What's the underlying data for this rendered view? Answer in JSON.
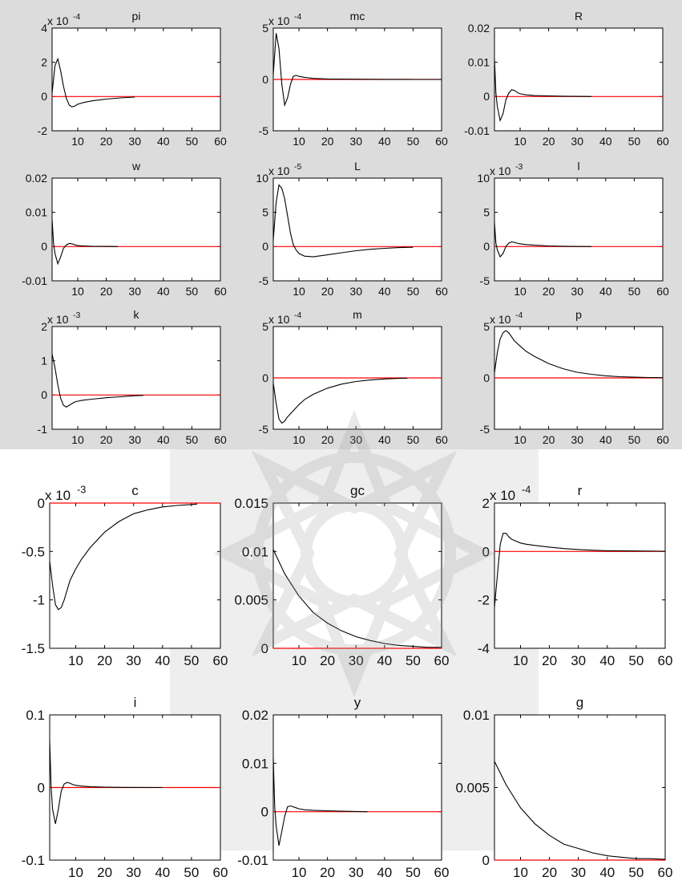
{
  "colors": {
    "response": "#000000",
    "zero_line": "#ff0000",
    "axes": "#000000",
    "panel_bg": "#ffffff",
    "page_bg": "#dcdcdc"
  },
  "chart_data": [
    {
      "type": "line",
      "title": "pi",
      "multiplier": "x 10",
      "exponent": "-4",
      "ylim": [
        -2,
        4
      ],
      "yticks": [
        -2,
        0,
        2,
        4
      ],
      "ytick_labels": [
        "-2",
        "0",
        "2",
        "4"
      ],
      "xlim": [
        1,
        60
      ],
      "xticks": [
        10,
        20,
        30,
        40,
        50,
        60
      ],
      "x": [
        1,
        2,
        3,
        4,
        5,
        6,
        7,
        8,
        9,
        10,
        12,
        15,
        20,
        25,
        30
      ],
      "y": [
        0.2,
        1.8,
        2.2,
        1.5,
        0.6,
        -0.1,
        -0.5,
        -0.6,
        -0.55,
        -0.45,
        -0.35,
        -0.25,
        -0.15,
        -0.08,
        -0.03
      ]
    },
    {
      "type": "line",
      "title": "mc",
      "multiplier": "x 10",
      "exponent": "-4",
      "ylim": [
        -5,
        5
      ],
      "yticks": [
        -5,
        0,
        5
      ],
      "ytick_labels": [
        "-5",
        "0",
        "5"
      ],
      "xlim": [
        1,
        60
      ],
      "xticks": [
        10,
        20,
        30,
        40,
        50,
        60
      ],
      "x": [
        1,
        2,
        3,
        4,
        5,
        6,
        7,
        8,
        9,
        10,
        12,
        15,
        20,
        30,
        40,
        50,
        60
      ],
      "y": [
        0.5,
        4.5,
        3.0,
        -0.5,
        -2.5,
        -1.8,
        -0.5,
        0.3,
        0.4,
        0.3,
        0.2,
        0.1,
        0.05,
        0.02,
        0.01,
        0.0,
        0.0
      ]
    },
    {
      "type": "line",
      "title": "R",
      "multiplier": "",
      "exponent": "",
      "ylim": [
        -0.01,
        0.02
      ],
      "yticks": [
        -0.01,
        0,
        0.01,
        0.02
      ],
      "ytick_labels": [
        "-0.01",
        "0",
        "0.01",
        "0.02"
      ],
      "xlim": [
        1,
        60
      ],
      "xticks": [
        10,
        20,
        30,
        40,
        50,
        60
      ],
      "x": [
        1,
        1.5,
        2,
        3,
        4,
        5,
        6,
        7,
        8,
        9,
        10,
        12,
        15,
        20,
        25,
        30,
        35
      ],
      "y": [
        0.011,
        0.001,
        -0.003,
        -0.007,
        -0.005,
        -0.001,
        0.001,
        0.002,
        0.0018,
        0.0012,
        0.0008,
        0.0005,
        0.0003,
        0.0002,
        0.0001,
        5e-05,
        0.0
      ]
    },
    {
      "type": "line",
      "title": "w",
      "multiplier": "",
      "exponent": "",
      "ylim": [
        -0.01,
        0.02
      ],
      "yticks": [
        -0.01,
        0,
        0.01,
        0.02
      ],
      "ytick_labels": [
        "-0.01",
        "0",
        "0.01",
        "0.02"
      ],
      "xlim": [
        1,
        60
      ],
      "xticks": [
        10,
        20,
        30,
        40,
        50,
        60
      ],
      "x": [
        1,
        1.5,
        2,
        3,
        4,
        5,
        6,
        7,
        8,
        9,
        10,
        12,
        15,
        20,
        24
      ],
      "y": [
        0.008,
        0.001,
        -0.002,
        -0.005,
        -0.003,
        -0.0005,
        0.0005,
        0.0009,
        0.0008,
        0.0005,
        0.0003,
        0.0002,
        0.0001,
        5e-05,
        0.0
      ]
    },
    {
      "type": "line",
      "title": "L",
      "multiplier": "x 10",
      "exponent": "-5",
      "ylim": [
        -5,
        10
      ],
      "yticks": [
        -5,
        0,
        5,
        10
      ],
      "ytick_labels": [
        "-5",
        "0",
        "5",
        "10"
      ],
      "xlim": [
        1,
        60
      ],
      "xticks": [
        10,
        20,
        30,
        40,
        50,
        60
      ],
      "x": [
        1,
        2,
        3,
        4,
        5,
        6,
        7,
        8,
        9,
        10,
        12,
        15,
        20,
        25,
        30,
        35,
        40,
        45,
        50
      ],
      "y": [
        1.0,
        6.5,
        9.0,
        8.5,
        7.0,
        4.5,
        2.0,
        0.3,
        -0.5,
        -1.0,
        -1.4,
        -1.5,
        -1.2,
        -0.9,
        -0.6,
        -0.4,
        -0.25,
        -0.15,
        -0.1
      ]
    },
    {
      "type": "line",
      "title": "l",
      "multiplier": "x 10",
      "exponent": "-3",
      "ylim": [
        -5,
        10
      ],
      "yticks": [
        -5,
        0,
        5,
        10
      ],
      "ytick_labels": [
        "-5",
        "0",
        "5",
        "10"
      ],
      "xlim": [
        1,
        60
      ],
      "xticks": [
        10,
        20,
        30,
        40,
        50,
        60
      ],
      "x": [
        1,
        1.5,
        2,
        3,
        4,
        5,
        6,
        7,
        8,
        9,
        10,
        12,
        15,
        20,
        25,
        30,
        35
      ],
      "y": [
        3.5,
        0.5,
        -0.5,
        -1.5,
        -1.0,
        0.0,
        0.5,
        0.7,
        0.6,
        0.5,
        0.4,
        0.3,
        0.2,
        0.1,
        0.05,
        0.02,
        0.0
      ]
    },
    {
      "type": "line",
      "title": "k",
      "multiplier": "x 10",
      "exponent": "-3",
      "ylim": [
        -1,
        2
      ],
      "yticks": [
        -1,
        0,
        1,
        2
      ],
      "ytick_labels": [
        "-1",
        "0",
        "1",
        "2"
      ],
      "xlim": [
        1,
        60
      ],
      "xticks": [
        10,
        20,
        30,
        40,
        50,
        60
      ],
      "x": [
        1,
        2,
        3,
        4,
        5,
        6,
        7,
        8,
        9,
        10,
        12,
        15,
        20,
        25,
        30,
        33
      ],
      "y": [
        1.2,
        0.8,
        0.3,
        -0.1,
        -0.3,
        -0.35,
        -0.3,
        -0.25,
        -0.2,
        -0.18,
        -0.15,
        -0.12,
        -0.08,
        -0.05,
        -0.02,
        -0.01
      ]
    },
    {
      "type": "line",
      "title": "m",
      "multiplier": "x 10",
      "exponent": "-4",
      "ylim": [
        -5,
        5
      ],
      "yticks": [
        -5,
        0,
        5
      ],
      "ytick_labels": [
        "-5",
        "0",
        "5"
      ],
      "xlim": [
        1,
        60
      ],
      "xticks": [
        10,
        20,
        30,
        40,
        50,
        60
      ],
      "x": [
        1,
        2,
        3,
        4,
        5,
        6,
        8,
        10,
        12,
        15,
        20,
        25,
        30,
        35,
        40,
        45,
        48
      ],
      "y": [
        -0.5,
        -2.5,
        -4.0,
        -4.4,
        -4.2,
        -3.8,
        -3.2,
        -2.6,
        -2.1,
        -1.6,
        -1.0,
        -0.6,
        -0.35,
        -0.2,
        -0.1,
        -0.05,
        -0.02
      ]
    },
    {
      "type": "line",
      "title": "p",
      "multiplier": "x 10",
      "exponent": "-4",
      "ylim": [
        -5,
        5
      ],
      "yticks": [
        -5,
        0,
        5
      ],
      "ytick_labels": [
        "-5",
        "0",
        "5"
      ],
      "xlim": [
        1,
        60
      ],
      "xticks": [
        10,
        20,
        30,
        40,
        50,
        60
      ],
      "x": [
        1,
        2,
        3,
        4,
        5,
        6,
        7,
        8,
        10,
        12,
        15,
        20,
        25,
        30,
        35,
        40,
        45,
        50,
        55,
        60
      ],
      "y": [
        0.5,
        2.5,
        3.8,
        4.4,
        4.6,
        4.4,
        4.0,
        3.6,
        3.1,
        2.6,
        2.1,
        1.4,
        0.9,
        0.55,
        0.35,
        0.2,
        0.12,
        0.07,
        0.04,
        0.02
      ]
    },
    {
      "type": "line",
      "title": "c",
      "multiplier": "x 10",
      "exponent": "-3",
      "ylim": [
        -1.5,
        0
      ],
      "yticks": [
        -1.5,
        -1,
        -0.5,
        0
      ],
      "ytick_labels": [
        "-1.5",
        "-1",
        "-0.5",
        "0"
      ],
      "xlim": [
        1,
        60
      ],
      "xticks": [
        10,
        20,
        30,
        40,
        50,
        60
      ],
      "x": [
        1,
        2,
        3,
        4,
        5,
        6,
        7,
        8,
        10,
        12,
        15,
        20,
        25,
        30,
        35,
        40,
        45,
        50,
        52
      ],
      "y": [
        -0.6,
        -0.85,
        -1.05,
        -1.1,
        -1.08,
        -1.0,
        -0.9,
        -0.8,
        -0.68,
        -0.58,
        -0.46,
        -0.3,
        -0.19,
        -0.11,
        -0.07,
        -0.04,
        -0.025,
        -0.015,
        -0.01
      ]
    },
    {
      "type": "line",
      "title": "gc",
      "multiplier": "",
      "exponent": "",
      "ylim": [
        0,
        0.015
      ],
      "yticks": [
        0,
        0.005,
        0.01,
        0.015
      ],
      "ytick_labels": [
        "0",
        "0.005",
        "0.01",
        "0.015"
      ],
      "xlim": [
        1,
        60
      ],
      "xticks": [
        10,
        20,
        30,
        40,
        50,
        60
      ],
      "x": [
        1,
        5,
        10,
        15,
        20,
        25,
        30,
        35,
        40,
        45,
        50,
        55,
        60
      ],
      "y": [
        0.0102,
        0.0077,
        0.0054,
        0.0037,
        0.0026,
        0.0018,
        0.0012,
        0.0008,
        0.0005,
        0.0003,
        0.0002,
        0.0001,
        0.0001
      ]
    },
    {
      "type": "line",
      "title": "r",
      "multiplier": "x 10",
      "exponent": "-4",
      "ylim": [
        -4,
        2
      ],
      "yticks": [
        -4,
        -2,
        0,
        2
      ],
      "ytick_labels": [
        "-4",
        "-2",
        "0",
        "2"
      ],
      "xlim": [
        1,
        60
      ],
      "xticks": [
        10,
        20,
        30,
        40,
        50,
        60
      ],
      "x": [
        1,
        2,
        3,
        4,
        5,
        6,
        7,
        8,
        10,
        12,
        15,
        20,
        25,
        30,
        35,
        40,
        50,
        60
      ],
      "y": [
        -2.3,
        -1.0,
        0.3,
        0.75,
        0.75,
        0.6,
        0.5,
        0.45,
        0.35,
        0.3,
        0.25,
        0.18,
        0.12,
        0.08,
        0.05,
        0.03,
        0.02,
        0.01
      ]
    },
    {
      "type": "line",
      "title": "i",
      "multiplier": "",
      "exponent": "",
      "ylim": [
        -0.1,
        0.1
      ],
      "yticks": [
        -0.1,
        0,
        0.1
      ],
      "ytick_labels": [
        "-0.1",
        "0",
        "0.1"
      ],
      "xlim": [
        1,
        60
      ],
      "xticks": [
        10,
        20,
        30,
        40,
        50,
        60
      ],
      "x": [
        1,
        1.5,
        2,
        3,
        4,
        5,
        6,
        7,
        8,
        9,
        10,
        12,
        15,
        20,
        25,
        30,
        40
      ],
      "y": [
        0.065,
        0.0,
        -0.03,
        -0.05,
        -0.03,
        -0.005,
        0.005,
        0.007,
        0.006,
        0.004,
        0.003,
        0.002,
        0.001,
        0.0005,
        0.0002,
        0.0001,
        0.0
      ]
    },
    {
      "type": "line",
      "title": "y",
      "multiplier": "",
      "exponent": "",
      "ylim": [
        -0.01,
        0.02
      ],
      "yticks": [
        -0.01,
        0,
        0.01,
        0.02
      ],
      "ytick_labels": [
        "-0.01",
        "0",
        "0.01",
        "0.02"
      ],
      "xlim": [
        1,
        60
      ],
      "xticks": [
        10,
        20,
        30,
        40,
        50,
        60
      ],
      "x": [
        1,
        1.5,
        2,
        3,
        4,
        5,
        6,
        7,
        8,
        9,
        10,
        12,
        15,
        20,
        25,
        30,
        34
      ],
      "y": [
        0.011,
        0.001,
        -0.003,
        -0.007,
        -0.004,
        -0.001,
        0.001,
        0.0012,
        0.001,
        0.0008,
        0.0006,
        0.0004,
        0.0003,
        0.0002,
        0.0001,
        5e-05,
        0.0
      ]
    },
    {
      "type": "line",
      "title": "g",
      "multiplier": "",
      "exponent": "",
      "ylim": [
        0,
        0.01
      ],
      "yticks": [
        0,
        0.005,
        0.01
      ],
      "ytick_labels": [
        "0",
        "0.005",
        "0.01"
      ],
      "xlim": [
        1,
        60
      ],
      "xticks": [
        10,
        20,
        30,
        40,
        50,
        60
      ],
      "x": [
        1,
        5,
        10,
        15,
        20,
        25,
        30,
        35,
        40,
        45,
        50,
        55,
        60
      ],
      "y": [
        0.0068,
        0.0052,
        0.0036,
        0.0025,
        0.0017,
        0.0011,
        0.0008,
        0.0005,
        0.0003,
        0.0002,
        0.0001,
        0.0001,
        5e-05
      ]
    }
  ]
}
